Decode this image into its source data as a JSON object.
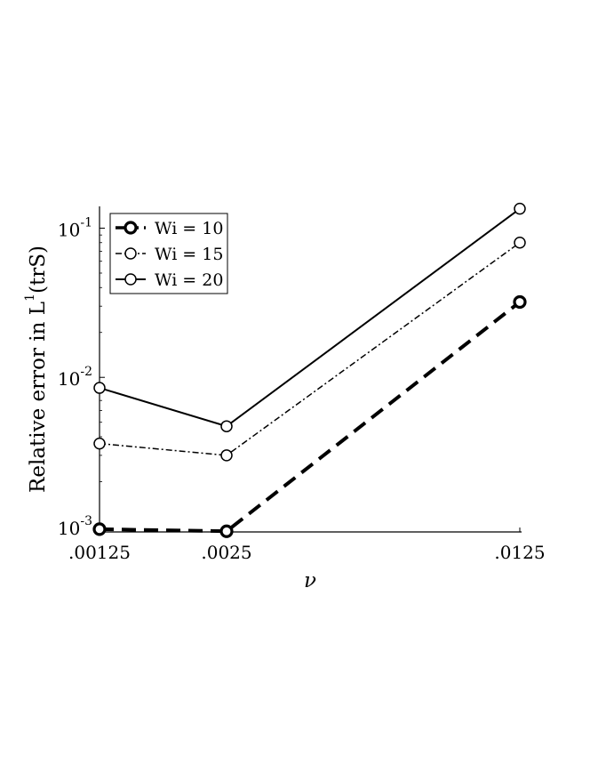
{
  "chart_data": {
    "type": "line",
    "title": "",
    "x_ticks": [
      {
        "value": 0.00125,
        "label": ".00125"
      },
      {
        "value": 0.0025,
        "label": ".0025"
      },
      {
        "value": 0.0125,
        "label": ".0125"
      }
    ],
    "xlabel": "ν",
    "ylabel": {
      "main": "Relative error in L",
      "superscript": "1",
      "suffix": "(trS)"
    },
    "y_scale": "log",
    "ylim": [
      0.00092,
      0.14
    ],
    "y_ticks": [
      {
        "value": 0.001,
        "base": "10",
        "exp": "-3"
      },
      {
        "value": 0.01,
        "base": "10",
        "exp": "-2"
      },
      {
        "value": 0.1,
        "base": "10",
        "exp": "-1"
      }
    ],
    "grid": false,
    "legend_position": "top-left",
    "series": [
      {
        "name": "Wi = 10",
        "x": [
          0.00125,
          0.0025,
          0.0125
        ],
        "values": [
          0.00096,
          0.00093,
          0.032
        ],
        "line_style": "dashed",
        "marker": "circle",
        "bold": true
      },
      {
        "name": "Wi = 15",
        "x": [
          0.00125,
          0.0025,
          0.0125
        ],
        "values": [
          0.0036,
          0.003,
          0.08
        ],
        "line_style": "dashdot",
        "marker": "circle",
        "bold": false
      },
      {
        "name": "Wi = 20",
        "x": [
          0.00125,
          0.0025,
          0.0125
        ],
        "values": [
          0.0085,
          0.0047,
          0.135
        ],
        "line_style": "solid",
        "marker": "circle",
        "bold": false
      }
    ]
  }
}
